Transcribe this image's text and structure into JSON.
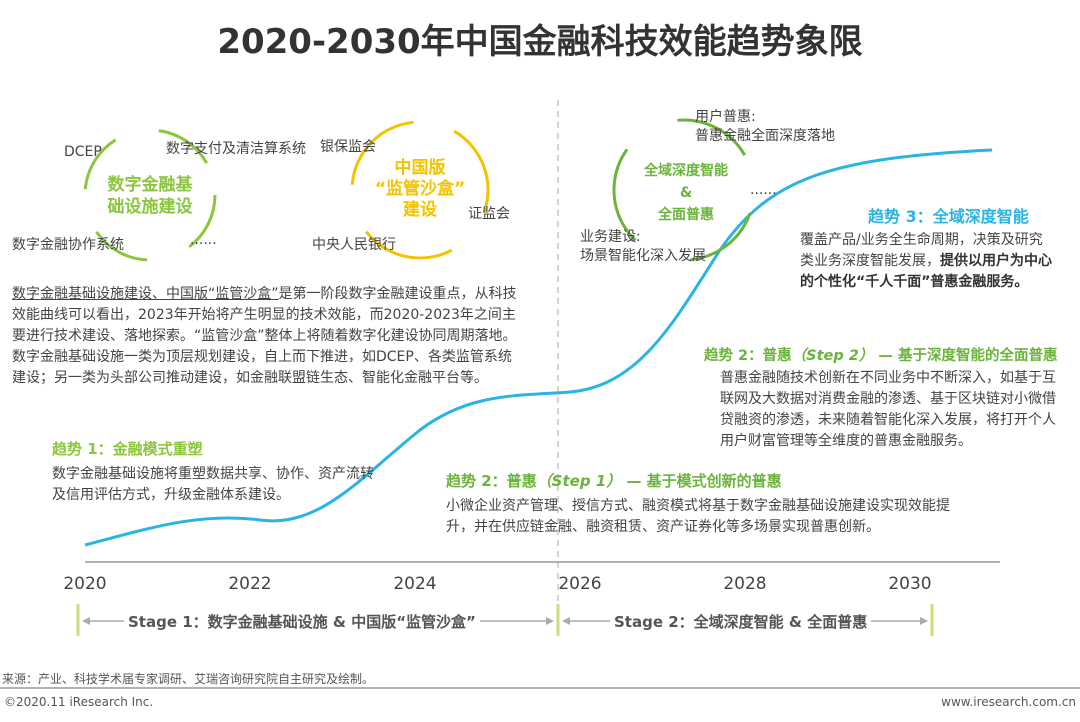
{
  "title": "2020-2030年中国金融科技效能趋势象限",
  "colors": {
    "curve": "#29b4e3",
    "green": "#8cc63e",
    "dark_green": "#6bb43b",
    "yellow": "#f2c300",
    "axis": "#999999"
  },
  "cluster1": {
    "center": "数字金融基础设施建设",
    "center_lines": [
      "数字金融基",
      "础设施建设"
    ],
    "items": [
      "DCEP",
      "数字支付及清洁算系统",
      "数字金融协作系统",
      "......"
    ]
  },
  "cluster2": {
    "center_lines": [
      "中国版",
      "“监管沙盒”",
      "建设"
    ],
    "items": [
      "银保监会",
      "证监会",
      "中央人民银行"
    ]
  },
  "cluster3": {
    "center_lines": [
      "全域深度智能",
      "&",
      "全面普惠"
    ],
    "top_label": [
      "用户普惠:",
      "普惠金融全面深度落地"
    ],
    "bottom_label": [
      "业务建设:",
      "场景智能化深入发展"
    ],
    "ellipsis": "......"
  },
  "stage1_text": {
    "underlined": "数字金融基础设施建设、中国版“监管沙盒”",
    "rest": "是第一阶段数字金融建设重点，从科技效能曲线可以看出，2023年开始将产生明显的技术效能，而2020-2023年之间主要进行技术建设、落地探索。“监管沙盒”整体上将随着数字化建设协同周期落地。数字金融基础设施一类为顶层规划建设，自上而下推进，如DCEP、各类监管系统建设；另一类为头部公司推动建设，如金融联盟链生态、智能化金融平台等。"
  },
  "trend1": {
    "title": "趋势 1：金融模式重塑",
    "body": "数字金融基础设施将重塑数据共享、协作、资产流转及信用评估方式，升级金融体系建设。"
  },
  "trend2_step1": {
    "title_a": "趋势 2：普惠",
    "title_step": "（Step 1）",
    "title_b": " — 基于模式创新的普惠",
    "body": "小微企业资产管理、授信方式、融资模式将基于数字金融基础设施建设实现效能提升，并在供应链金融、融资租赁、资产证券化等多场景实现普惠创新。"
  },
  "trend2_step2": {
    "title_a": "趋势 2：普惠",
    "title_step": "（Step 2）",
    "title_b": " — 基于深度智能的全面普惠",
    "body": "普惠金融随技术创新在不同业务中不断深入，如基于互联网及大数据对消费金融的渗透、基于区块链对小微借贷融资的渗透，未来随着智能化深入发展，将打开个人用户财富管理等全维度的普惠金融服务。"
  },
  "trend3": {
    "title": "趋势 3：全域深度智能",
    "body_plain": "覆盖产品/业务全生命周期，决策及研究类业务深度智能发展，",
    "body_bold": "提供以用户为中心的个性化“千人千面”普惠金融服务。"
  },
  "years": [
    "2020",
    "2022",
    "2024",
    "2026",
    "2028",
    "2030"
  ],
  "stages": [
    "Stage 1：数字金融基础设施 & 中国版“监管沙盒”",
    "Stage 2：全域深度智能 & 全面普惠"
  ],
  "footer": {
    "source": "来源：产业、科技学术届专家调研、艾瑞咨询研究院自主研究及绘制。",
    "copyright": "©2020.11 iResearch Inc.",
    "website": "www.iresearch.com.cn"
  }
}
